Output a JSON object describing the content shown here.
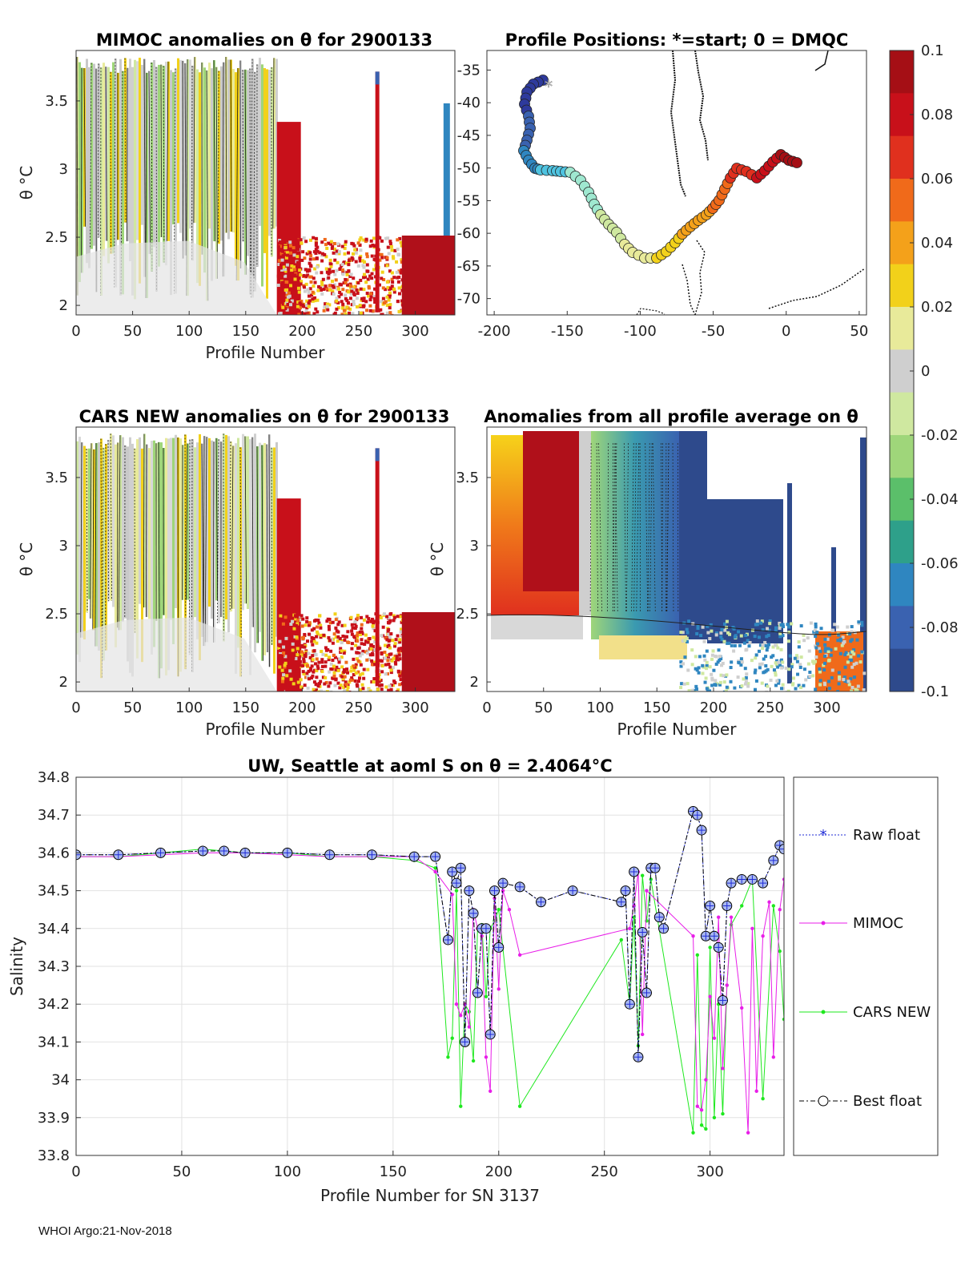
{
  "footer": "WHOI Argo:21-Nov-2018",
  "colorbar": {
    "ticks": [
      "0.1",
      "0.08",
      "0.06",
      "0.04",
      "0.02",
      "0",
      "-0.02",
      "-0.04",
      "-0.06",
      "-0.08",
      "-0.1"
    ],
    "colors": [
      "#a50f15",
      "#c8101a",
      "#e0301e",
      "#f06a1a",
      "#f4a11a",
      "#f2d11a",
      "#e8ea9a",
      "#cfcfcf",
      "#cfe8a0",
      "#9fd67a",
      "#5bbf6a",
      "#2ea08a",
      "#2f86c0",
      "#3a62b0",
      "#2e4a8c"
    ]
  },
  "panels": {
    "mimoc": {
      "title": "MIMOC anomalies on θ  for 2900133",
      "ylabel": "θ °C",
      "xlabel": "Profile Number",
      "xticks": [
        "0",
        "50",
        "100",
        "150",
        "200",
        "250",
        "300"
      ],
      "yticks": [
        "3.5",
        "3",
        "2.5",
        "2"
      ]
    },
    "positions": {
      "title": "Profile Positions: *=start; 0 = DMQC",
      "xticks": [
        "-200",
        "-150",
        "-100",
        "-50",
        "0",
        "50"
      ],
      "yticks": [
        "-35",
        "-40",
        "-45",
        "-50",
        "-55",
        "-60",
        "-65",
        "-70"
      ]
    },
    "cars": {
      "title": "CARS NEW anomalies on θ for 2900133",
      "ylabel": "θ °C",
      "xlabel": "Profile Number",
      "xticks": [
        "0",
        "50",
        "100",
        "150",
        "200",
        "250",
        "300"
      ],
      "yticks": [
        "3.5",
        "3",
        "2.5",
        "2"
      ]
    },
    "avg": {
      "title": "Anomalies from all profile average on θ",
      "ylabel": "θ °C",
      "xlabel": "Profile Number",
      "xticks": [
        "0",
        "50",
        "100",
        "150",
        "200",
        "250",
        "300"
      ],
      "yticks": [
        "3.5",
        "3",
        "2.5",
        "2"
      ]
    }
  },
  "chart_data": {
    "type": "line",
    "title": "UW, Seattle at aoml S on θ = 2.4064°C",
    "xlabel": "Profile Number for SN 3137",
    "ylabel": "Salinity",
    "xlim": [
      0,
      335
    ],
    "ylim": [
      33.8,
      34.8
    ],
    "xticks": [
      "0",
      "50",
      "100",
      "150",
      "200",
      "250",
      "300"
    ],
    "yticks": [
      "34.8",
      "34.7",
      "34.6",
      "34.5",
      "34.4",
      "34.3",
      "34.2",
      "34.1",
      "34",
      "33.9",
      "33.8"
    ],
    "legend_position": "outside-right",
    "series": [
      {
        "name": "Raw float",
        "color": "#1f2bd6",
        "x": [
          0,
          20,
          40,
          60,
          70,
          80,
          100,
          120,
          140,
          160,
          170,
          176,
          178,
          180,
          182,
          184,
          186,
          188,
          190,
          192,
          194,
          196,
          198,
          200,
          202,
          210,
          220,
          235,
          258,
          260,
          262,
          264,
          266,
          268,
          270,
          272,
          274,
          276,
          278,
          292,
          294,
          296,
          298,
          300,
          302,
          304,
          306,
          308,
          310,
          315,
          320,
          325,
          330,
          333,
          335
        ],
        "y": [
          34.595,
          34.595,
          34.6,
          34.605,
          34.605,
          34.6,
          34.6,
          34.595,
          34.595,
          34.59,
          34.59,
          34.37,
          34.55,
          34.52,
          34.56,
          34.1,
          34.5,
          34.44,
          34.23,
          34.4,
          34.4,
          34.12,
          34.5,
          34.35,
          34.52,
          34.51,
          34.47,
          34.5,
          34.47,
          34.5,
          34.2,
          34.55,
          34.06,
          34.39,
          34.23,
          34.56,
          34.56,
          34.43,
          34.4,
          34.71,
          34.7,
          34.66,
          34.38,
          34.46,
          34.38,
          34.35,
          34.21,
          34.46,
          34.52,
          34.53,
          34.53,
          34.52,
          34.58,
          34.62,
          34.61
        ]
      },
      {
        "name": "MIMOC",
        "color": "#e81ee8",
        "x": [
          0,
          20,
          40,
          60,
          80,
          100,
          120,
          140,
          160,
          170,
          178,
          180,
          182,
          184,
          186,
          188,
          190,
          192,
          194,
          196,
          198,
          200,
          202,
          205,
          210,
          262,
          264,
          266,
          268,
          270,
          292,
          294,
          296,
          298,
          300,
          302,
          304,
          306,
          308,
          310,
          315,
          318,
          320,
          322,
          325,
          328,
          330,
          333,
          335
        ],
        "y": [
          34.59,
          34.59,
          34.595,
          34.6,
          34.6,
          34.595,
          34.59,
          34.59,
          34.59,
          34.55,
          34.49,
          34.2,
          34.17,
          34.2,
          34.14,
          34.45,
          34.4,
          34.38,
          34.06,
          33.97,
          34.48,
          34.24,
          34.5,
          34.45,
          34.33,
          34.4,
          34.46,
          34.55,
          34.12,
          34.5,
          34.38,
          33.93,
          33.92,
          34.0,
          34.22,
          34.11,
          34.43,
          34.03,
          34.25,
          34.43,
          34.19,
          33.86,
          34.4,
          33.97,
          34.38,
          34.47,
          34.06,
          34.45,
          34.53
        ]
      },
      {
        "name": "CARS NEW",
        "color": "#1ee81e",
        "x": [
          0,
          20,
          40,
          60,
          80,
          100,
          120,
          140,
          160,
          170,
          176,
          178,
          180,
          182,
          184,
          186,
          188,
          190,
          192,
          194,
          196,
          198,
          200,
          210,
          258,
          262,
          264,
          266,
          268,
          270,
          272,
          292,
          294,
          296,
          298,
          300,
          302,
          304,
          306,
          308,
          310,
          315,
          320,
          325,
          330,
          333,
          335
        ],
        "y": [
          34.59,
          34.59,
          34.6,
          34.61,
          34.6,
          34.6,
          34.59,
          34.59,
          34.58,
          34.56,
          34.06,
          34.11,
          34.5,
          33.93,
          34.2,
          34.18,
          34.05,
          34.4,
          34.41,
          34.22,
          34.4,
          34.42,
          34.45,
          33.93,
          34.37,
          34.2,
          34.43,
          34.09,
          34.54,
          34.42,
          34.53,
          33.86,
          34.33,
          33.88,
          33.87,
          34.35,
          33.9,
          34.2,
          33.91,
          34.25,
          34.41,
          34.46,
          34.53,
          33.95,
          34.46,
          34.34,
          34.16
        ]
      },
      {
        "name": "Best float",
        "color": "#000000",
        "x": [
          0,
          20,
          40,
          60,
          70,
          80,
          100,
          120,
          140,
          160,
          170,
          176,
          178,
          180,
          182,
          184,
          186,
          188,
          190,
          192,
          194,
          196,
          198,
          200,
          202,
          210,
          220,
          235,
          258,
          260,
          262,
          264,
          266,
          268,
          270,
          272,
          274,
          276,
          278,
          292,
          294,
          296,
          298,
          300,
          302,
          304,
          306,
          308,
          310,
          315,
          320,
          325,
          330,
          333,
          335
        ],
        "y": [
          34.595,
          34.595,
          34.6,
          34.605,
          34.605,
          34.6,
          34.6,
          34.595,
          34.595,
          34.59,
          34.59,
          34.37,
          34.55,
          34.52,
          34.56,
          34.1,
          34.5,
          34.44,
          34.23,
          34.4,
          34.4,
          34.12,
          34.5,
          34.35,
          34.52,
          34.51,
          34.47,
          34.5,
          34.47,
          34.5,
          34.2,
          34.55,
          34.06,
          34.39,
          34.23,
          34.56,
          34.56,
          34.43,
          34.4,
          34.71,
          34.7,
          34.66,
          34.38,
          34.46,
          34.38,
          34.35,
          34.21,
          34.46,
          34.52,
          34.53,
          34.53,
          34.52,
          34.58,
          34.62,
          34.61
        ]
      }
    ]
  }
}
